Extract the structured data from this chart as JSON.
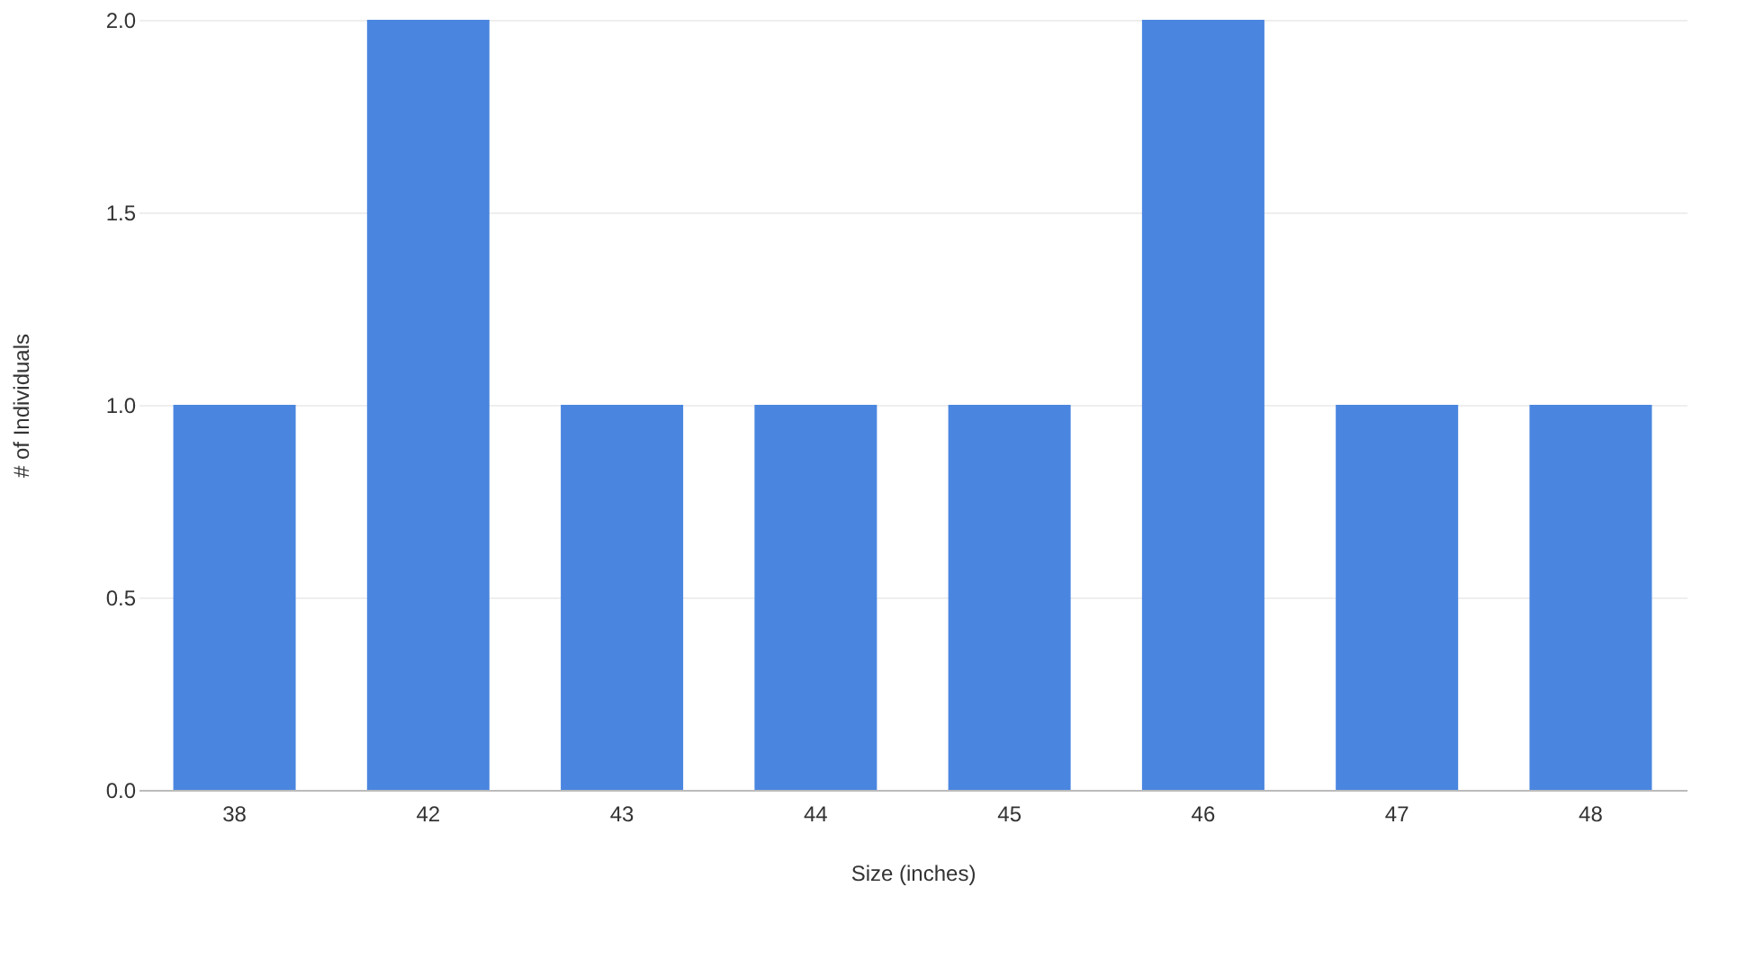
{
  "chart_data": {
    "type": "bar",
    "xlabel": "Size (inches)",
    "ylabel": "# of Individuals",
    "categories": [
      "38",
      "42",
      "43",
      "44",
      "45",
      "46",
      "47",
      "48"
    ],
    "values": [
      1,
      2,
      1,
      1,
      1,
      2,
      1,
      1
    ],
    "color": "#4a86e0",
    "ylim": [
      0,
      2
    ],
    "yticks": [
      {
        "value": 0,
        "label": "0.0"
      },
      {
        "value": 0.5,
        "label": "0.5"
      },
      {
        "value": 1,
        "label": "1.0"
      },
      {
        "value": 1.5,
        "label": "1.5"
      },
      {
        "value": 2,
        "label": "2.0"
      }
    ],
    "grid": "y"
  }
}
